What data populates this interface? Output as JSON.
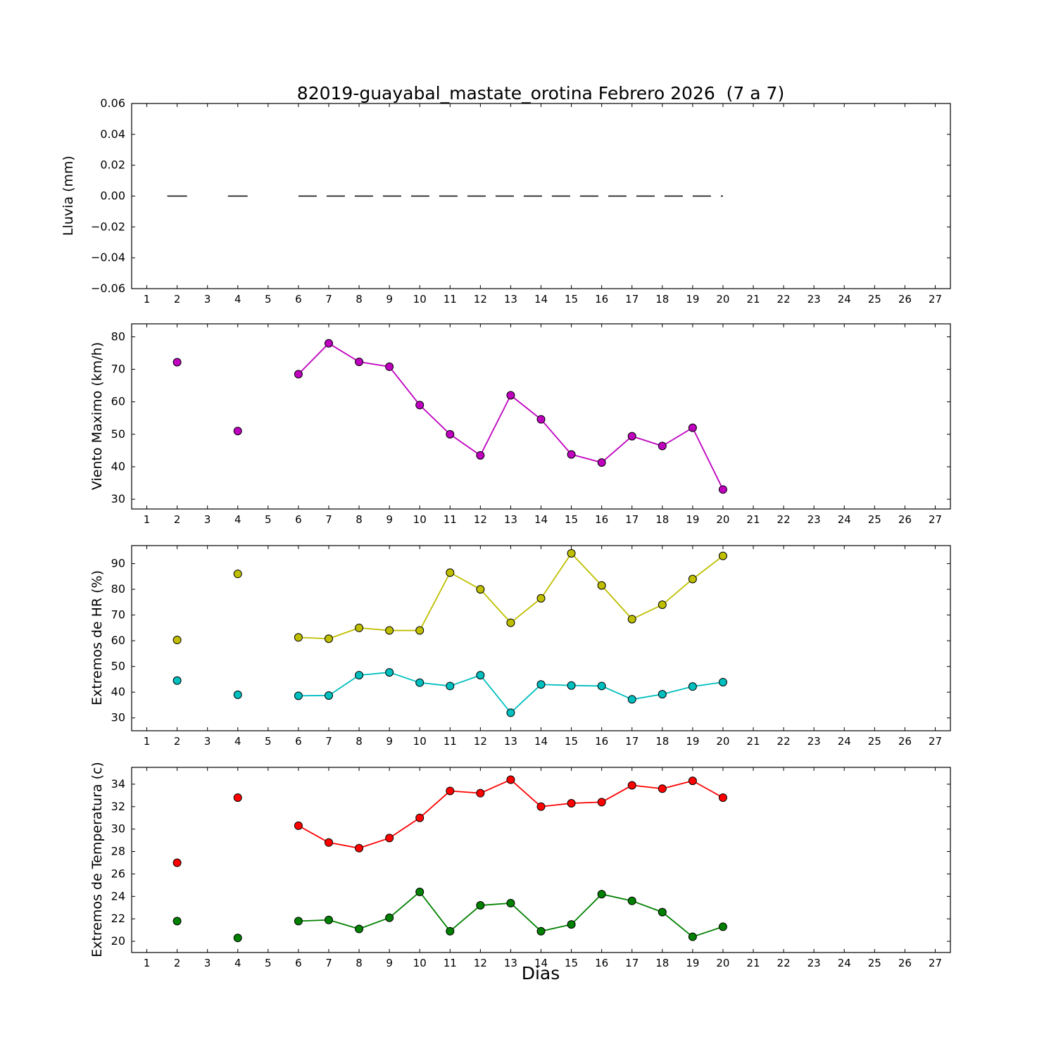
{
  "figure": {
    "title": "82019-guayabal_mastate_orotina Febrero 2026  (7 a 7)",
    "xlabel": "Dias",
    "background": "#ffffff",
    "frame_color": "#000000"
  },
  "chart_data": [
    {
      "type": "line",
      "title": "",
      "xlabel": "",
      "ylabel": "Lluvia (mm)",
      "xlim": [
        0.5,
        27.5
      ],
      "ylim": [
        -0.06,
        0.06
      ],
      "xticks": [
        1,
        2,
        3,
        4,
        5,
        6,
        7,
        8,
        9,
        10,
        11,
        12,
        13,
        14,
        15,
        16,
        17,
        18,
        19,
        20,
        21,
        22,
        23,
        24,
        25,
        26,
        27
      ],
      "yticks": [
        -0.06,
        -0.04,
        -0.02,
        0,
        0.02,
        0.04,
        0.06
      ],
      "ydecimals": 2,
      "grid": false,
      "series": [
        {
          "name": "lluvia",
          "color": "#000000",
          "line_style": "dashed",
          "marker": "none",
          "x": [
            2,
            4,
            6,
            7,
            8,
            9,
            10,
            11,
            12,
            13,
            14,
            15,
            16,
            17,
            18,
            19,
            20
          ],
          "y": [
            0,
            0,
            0,
            0,
            0,
            0,
            0,
            0,
            0,
            0,
            0,
            0,
            0,
            0,
            0,
            0,
            0
          ]
        }
      ]
    },
    {
      "type": "line",
      "title": "",
      "xlabel": "",
      "ylabel": "Viento Maximo (km/h)",
      "xlim": [
        0.5,
        27.5
      ],
      "ylim": [
        27,
        84
      ],
      "xticks": [
        1,
        2,
        3,
        4,
        5,
        6,
        7,
        8,
        9,
        10,
        11,
        12,
        13,
        14,
        15,
        16,
        17,
        18,
        19,
        20,
        21,
        22,
        23,
        24,
        25,
        26,
        27
      ],
      "yticks": [
        30,
        40,
        50,
        60,
        70,
        80
      ],
      "ydecimals": 0,
      "grid": false,
      "series": [
        {
          "name": "viento_maximo",
          "color": "#BF00BF",
          "line_style": "solid",
          "marker": "o",
          "x": [
            2,
            4,
            6,
            7,
            8,
            9,
            10,
            11,
            12,
            13,
            14,
            15,
            16,
            17,
            18,
            19,
            20
          ],
          "y": [
            72.2,
            51,
            68.5,
            78,
            72.3,
            70.8,
            59,
            50,
            43.5,
            62,
            54.6,
            43.8,
            41.3,
            49.4,
            46.4,
            52,
            33
          ]
        }
      ]
    },
    {
      "type": "line",
      "title": "",
      "xlabel": "",
      "ylabel": "Extremos de HR (%)",
      "xlim": [
        0.5,
        27.5
      ],
      "ylim": [
        25,
        97
      ],
      "xticks": [
        1,
        2,
        3,
        4,
        5,
        6,
        7,
        8,
        9,
        10,
        11,
        12,
        13,
        14,
        15,
        16,
        17,
        18,
        19,
        20,
        21,
        22,
        23,
        24,
        25,
        26,
        27
      ],
      "yticks": [
        30,
        40,
        50,
        60,
        70,
        80,
        90
      ],
      "ydecimals": 0,
      "grid": false,
      "series": [
        {
          "name": "hr_maxima",
          "color": "#BFBF00",
          "line_style": "solid",
          "marker": "o",
          "x": [
            2,
            4,
            6,
            7,
            8,
            9,
            10,
            11,
            12,
            13,
            14,
            15,
            16,
            17,
            18,
            19,
            20
          ],
          "y": [
            60.3,
            86,
            61.3,
            60.8,
            65,
            64,
            64,
            86.5,
            80,
            67,
            76.5,
            94,
            81.5,
            68.4,
            74,
            84,
            93
          ]
        },
        {
          "name": "hr_minima",
          "color": "#00BFBF",
          "line_style": "solid",
          "marker": "o",
          "x": [
            2,
            4,
            6,
            7,
            8,
            9,
            10,
            11,
            12,
            13,
            14,
            15,
            16,
            17,
            18,
            19,
            20
          ],
          "y": [
            44.5,
            39,
            38.6,
            38.7,
            46.6,
            47.7,
            43.7,
            42.4,
            46.6,
            32,
            43,
            42.6,
            42.4,
            37.2,
            39.2,
            42.2,
            43.9
          ]
        }
      ]
    },
    {
      "type": "line",
      "title": "",
      "xlabel": "Dias",
      "ylabel": "Extremos de Temperatura (c)",
      "xlim": [
        0.5,
        27.5
      ],
      "ylim": [
        19,
        35.5
      ],
      "xticks": [
        1,
        2,
        3,
        4,
        5,
        6,
        7,
        8,
        9,
        10,
        11,
        12,
        13,
        14,
        15,
        16,
        17,
        18,
        19,
        20,
        21,
        22,
        23,
        24,
        25,
        26,
        27
      ],
      "yticks": [
        20,
        22,
        24,
        26,
        28,
        30,
        32,
        34
      ],
      "ydecimals": 0,
      "grid": false,
      "series": [
        {
          "name": "temperatura_maxima",
          "color": "#FF0000",
          "line_style": "solid",
          "marker": "o",
          "x": [
            2,
            4,
            6,
            7,
            8,
            9,
            10,
            11,
            12,
            13,
            14,
            15,
            16,
            17,
            18,
            19,
            20
          ],
          "y": [
            27,
            32.8,
            30.3,
            28.8,
            28.3,
            29.2,
            31,
            33.4,
            33.2,
            34.4,
            32,
            32.3,
            32.4,
            33.9,
            33.6,
            34.3,
            32.8
          ]
        },
        {
          "name": "temperatura_minima",
          "color": "#008000",
          "line_style": "solid",
          "marker": "o",
          "x": [
            2,
            4,
            6,
            7,
            8,
            9,
            10,
            11,
            12,
            13,
            14,
            15,
            16,
            17,
            18,
            19,
            20
          ],
          "y": [
            21.8,
            20.3,
            21.8,
            21.9,
            21.1,
            22.1,
            24.4,
            20.9,
            23.2,
            23.4,
            20.9,
            21.5,
            24.2,
            23.6,
            22.6,
            20.4,
            21.3
          ]
        }
      ]
    }
  ]
}
